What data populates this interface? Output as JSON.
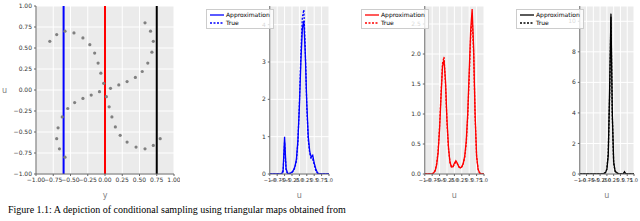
{
  "caption": "Figure 1.1: A depiction of conditional sampling using triangular maps obtained from",
  "chart_data": [
    {
      "type": "scatter",
      "xlabel": "y",
      "ylabel": "u",
      "grid": true,
      "color": "#808080",
      "xlim": [
        -1,
        1
      ],
      "ylim": [
        -1,
        1
      ],
      "xticks": [
        {
          "value": -1,
          "label": "−1.00"
        },
        {
          "value": -0.75,
          "label": "−0.75"
        },
        {
          "value": -0.5,
          "label": "−0.50"
        },
        {
          "value": -0.25,
          "label": "−0.25"
        },
        {
          "value": 0,
          "label": "0.00"
        },
        0.25,
        {
          "value": 0.5,
          "label": "0.50"
        },
        0.75,
        {
          "value": 1,
          "label": "1.00"
        }
      ],
      "yticks": [
        {
          "value": -1,
          "label": "−1.00"
        },
        {
          "value": -0.75,
          "label": "−0.75"
        },
        {
          "value": -0.5,
          "label": "−0.50"
        },
        {
          "value": -0.25,
          "label": "−0.25"
        },
        {
          "value": 0,
          "label": "0.00"
        },
        0.25,
        {
          "value": 0.5,
          "label": "0.50"
        },
        0.75,
        {
          "value": 1,
          "label": "1.00"
        }
      ],
      "x": [
        0.08,
        0.2,
        0.32,
        0.44,
        0.54,
        0.62,
        0.68,
        0.7,
        0.66,
        0.58,
        -0.02,
        -0.06,
        -0.1,
        -0.15,
        -0.22,
        -0.32,
        -0.45,
        -0.58,
        -0.7,
        -0.8,
        -0.08,
        -0.2,
        -0.32,
        -0.44,
        -0.54,
        -0.62,
        -0.68,
        -0.7,
        -0.66,
        -0.58,
        0.02,
        0.06,
        0.1,
        0.15,
        0.22,
        0.32,
        0.45,
        0.58,
        0.7,
        0.8
      ],
      "values": [
        0.02,
        0.06,
        0.1,
        0.15,
        0.22,
        0.32,
        0.45,
        0.58,
        0.7,
        0.8,
        0.08,
        0.2,
        0.32,
        0.44,
        0.54,
        0.62,
        0.68,
        0.7,
        0.66,
        0.58,
        -0.02,
        -0.06,
        -0.1,
        -0.15,
        -0.22,
        -0.32,
        -0.45,
        -0.58,
        -0.7,
        -0.8,
        -0.08,
        -0.2,
        -0.32,
        -0.44,
        -0.54,
        -0.62,
        -0.68,
        -0.7,
        -0.66,
        -0.58
      ],
      "vlines": [
        {
          "x": -0.6,
          "color": "#0000ff"
        },
        {
          "x": 0,
          "color": "#ff0000"
        },
        {
          "x": 0.75,
          "color": "#000000"
        }
      ]
    },
    {
      "type": "line",
      "xlabel": "u",
      "grid": true,
      "legend": "upper left",
      "xlim": [
        -1,
        1
      ],
      "ylim": [
        0,
        4.5
      ],
      "xticks": [
        {
          "value": -1,
          "label": "−1.0"
        },
        {
          "value": -0.75,
          "label": "−0.75"
        },
        {
          "value": -0.5,
          "label": "−0.5"
        },
        {
          "value": -0.25,
          "label": "−0.25"
        },
        {
          "value": 0,
          "label": "0.0"
        },
        0.25,
        0.5,
        0.75,
        {
          "value": 1,
          "label": "1.0"
        }
      ],
      "yticks": [
        0,
        1,
        2,
        3,
        4
      ],
      "x": [
        -1,
        -0.95,
        -0.9,
        -0.85,
        -0.8,
        -0.75,
        -0.7,
        -0.65,
        -0.6,
        -0.55,
        -0.5,
        -0.45,
        -0.4,
        -0.35,
        -0.3,
        -0.25,
        -0.2,
        -0.15,
        -0.1,
        -0.05,
        0,
        0.05,
        0.1,
        0.15,
        0.2,
        0.25,
        0.3,
        0.35,
        0.4,
        0.45,
        0.5,
        0.55,
        0.6,
        0.65,
        0.7,
        0.75,
        0.8,
        0.85,
        0.9,
        0.95,
        1
      ],
      "series": [
        {
          "name": "Approximation",
          "color": "#0000ff",
          "line_style": "solid",
          "values": [
            0,
            0,
            0,
            0,
            0,
            0,
            0,
            0,
            0,
            0.1,
            1.0,
            0.15,
            0.02,
            0.01,
            0.02,
            0.05,
            0.1,
            0.2,
            0.4,
            0.9,
            1.8,
            3.0,
            3.9,
            4.1,
            3.2,
            1.9,
            1.0,
            0.6,
            0.45,
            0.5,
            0.3,
            0.15,
            0.05,
            0,
            0,
            0,
            0,
            0,
            0,
            0,
            0
          ]
        },
        {
          "name": "True",
          "color": "#0000ff",
          "line_style": "dotted",
          "values": [
            0,
            0,
            0,
            0,
            0,
            0,
            0,
            0,
            0,
            0.05,
            0.85,
            0.1,
            0.01,
            0.01,
            0.02,
            0.04,
            0.08,
            0.18,
            0.35,
            0.85,
            1.9,
            3.2,
            4.2,
            4.4,
            3.3,
            1.8,
            0.9,
            0.55,
            0.4,
            0.4,
            0.25,
            0.1,
            0.03,
            0,
            0,
            0,
            0,
            0,
            0,
            0,
            0
          ]
        }
      ]
    },
    {
      "type": "line",
      "xlabel": "u",
      "grid": true,
      "legend": "upper left",
      "xlim": [
        -1,
        1
      ],
      "ylim": [
        0,
        2.8
      ],
      "xticks": [
        {
          "value": -1,
          "label": "−1.0"
        },
        {
          "value": -0.75,
          "label": "−0.75"
        },
        {
          "value": -0.5,
          "label": "−0.5"
        },
        {
          "value": -0.25,
          "label": "−0.25"
        },
        {
          "value": 0,
          "label": "0.0"
        },
        0.25,
        0.5,
        0.75,
        {
          "value": 1,
          "label": "1.0"
        }
      ],
      "yticks": [
        {
          "value": 0,
          "label": "0.0"
        },
        0.5,
        {
          "value": 1,
          "label": "1.0"
        },
        1.5,
        {
          "value": 2,
          "label": "2.0"
        },
        2.5
      ],
      "x": [
        -1,
        -0.95,
        -0.9,
        -0.85,
        -0.8,
        -0.75,
        -0.7,
        -0.65,
        -0.6,
        -0.55,
        -0.5,
        -0.45,
        -0.4,
        -0.35,
        -0.3,
        -0.25,
        -0.2,
        -0.15,
        -0.1,
        -0.05,
        0,
        0.05,
        0.1,
        0.15,
        0.2,
        0.25,
        0.3,
        0.35,
        0.4,
        0.45,
        0.5,
        0.55,
        0.6,
        0.65,
        0.7,
        0.75,
        0.8,
        0.85,
        0.9,
        0.95,
        1
      ],
      "series": [
        {
          "name": "Approximation",
          "color": "#ff0000",
          "line_style": "solid",
          "values": [
            0,
            0,
            0,
            0,
            0,
            0,
            0.02,
            0.05,
            0.15,
            0.35,
            0.75,
            1.3,
            1.8,
            1.9,
            1.55,
            0.9,
            0.45,
            0.2,
            0.12,
            0.12,
            0.18,
            0.22,
            0.18,
            0.12,
            0.1,
            0.12,
            0.18,
            0.3,
            0.55,
            1.0,
            1.7,
            2.4,
            2.75,
            2.1,
            1.0,
            0.3,
            0.08,
            0.02,
            0,
            0,
            0
          ]
        },
        {
          "name": "True",
          "color": "#ff0000",
          "line_style": "dotted",
          "values": [
            0,
            0,
            0,
            0,
            0,
            0,
            0.02,
            0.06,
            0.17,
            0.38,
            0.8,
            1.35,
            1.85,
            1.95,
            1.5,
            0.85,
            0.42,
            0.2,
            0.12,
            0.12,
            0.16,
            0.2,
            0.17,
            0.12,
            0.1,
            0.12,
            0.17,
            0.28,
            0.5,
            0.95,
            1.6,
            2.3,
            2.6,
            2.0,
            0.95,
            0.3,
            0.08,
            0.02,
            0,
            0,
            0
          ]
        }
      ]
    },
    {
      "type": "line",
      "xlabel": "u",
      "grid": true,
      "legend": "upper left",
      "xlim": [
        -1,
        1
      ],
      "ylim": [
        0,
        11
      ],
      "xticks": [
        {
          "value": -1,
          "label": "−1.0"
        },
        {
          "value": -0.75,
          "label": "−0.75"
        },
        {
          "value": -0.5,
          "label": "−0.5"
        },
        {
          "value": -0.25,
          "label": "−0.25"
        },
        {
          "value": 0,
          "label": "0.0"
        },
        0.25,
        0.5,
        0.75,
        {
          "value": 1,
          "label": "1.0"
        }
      ],
      "yticks": [
        0,
        2,
        4,
        6,
        8,
        10
      ],
      "x": [
        -1,
        -0.95,
        -0.9,
        -0.85,
        -0.8,
        -0.75,
        -0.7,
        -0.65,
        -0.6,
        -0.55,
        -0.5,
        -0.45,
        -0.4,
        -0.35,
        -0.3,
        -0.25,
        -0.2,
        -0.15,
        -0.1,
        -0.05,
        0,
        0.05,
        0.1,
        0.15,
        0.2,
        0.25,
        0.3,
        0.35,
        0.4,
        0.45,
        0.5,
        0.55,
        0.6,
        0.65,
        0.7,
        0.75,
        0.8,
        0.85,
        0.9,
        0.95,
        1
      ],
      "series": [
        {
          "name": "Approximation",
          "color": "#000000",
          "line_style": "solid",
          "values": [
            0,
            0,
            0,
            0,
            0,
            0,
            0,
            0,
            0,
            0,
            0,
            0,
            0,
            0,
            0,
            0,
            0,
            0,
            0.05,
            0.1,
            0.3,
            1.2,
            5.5,
            10.5,
            4.0,
            0.8,
            0.2,
            0.1,
            0.05,
            0,
            0,
            0,
            0,
            0.15,
            0,
            0,
            0,
            0,
            0,
            0,
            0
          ]
        },
        {
          "name": "True",
          "color": "#000000",
          "line_style": "dotted",
          "values": [
            0,
            0,
            0,
            0,
            0,
            0,
            0,
            0,
            0,
            0,
            0,
            0,
            0,
            0,
            0,
            0,
            0,
            0,
            0.04,
            0.1,
            0.35,
            1.4,
            5.0,
            10.3,
            3.8,
            0.7,
            0.2,
            0.08,
            0.04,
            0,
            0,
            0,
            0,
            0.1,
            0,
            0,
            0,
            0,
            0,
            0,
            0
          ]
        }
      ]
    }
  ]
}
